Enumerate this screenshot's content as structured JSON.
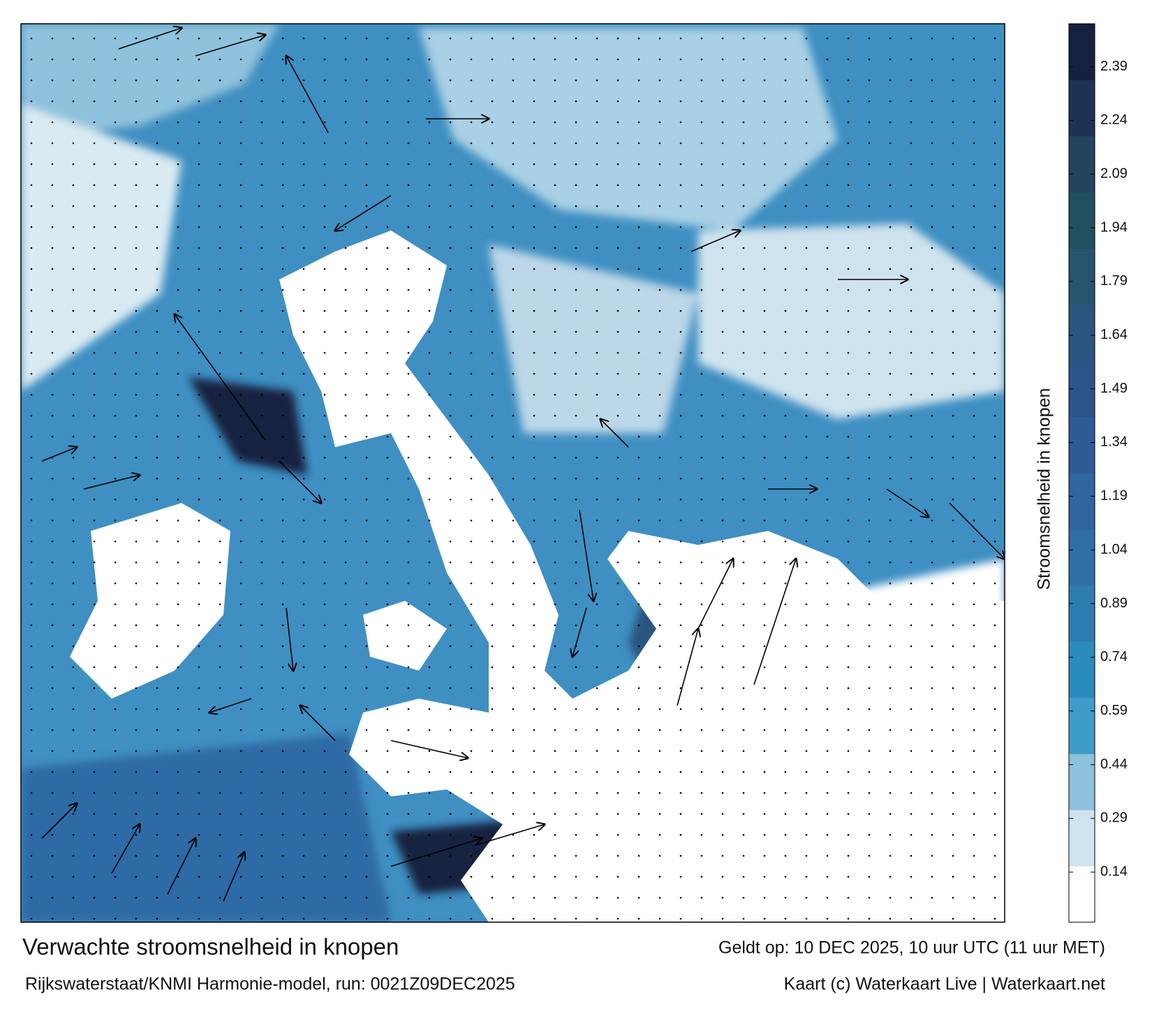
{
  "map": {
    "title": "Verwachte stroomsnelheid in knopen",
    "subtitle": "Rijkswaterstaat/KNMI Harmonie-model, run: 0021Z09DEC2025",
    "valid_time": "Geldt op: 10 DEC 2025, 10 uur UTC (11 uur MET)",
    "credit": "Kaart (c) Waterkaart Live | Waterkaart.net",
    "colorbar": {
      "label": "Stroomsnelheid in knopen",
      "lim": [
        0,
        2.51
      ],
      "ticks": [
        0.14,
        0.29,
        0.44,
        0.59,
        0.74,
        0.89,
        1.04,
        1.19,
        1.34,
        1.49,
        1.64,
        1.79,
        1.94,
        2.09,
        2.24,
        2.39
      ],
      "colors": [
        "#ffffff",
        "#cfe3ee",
        "#8fc2dc",
        "#3f9cc8",
        "#2a8bbd",
        "#2d7cb2",
        "#2f6fa8",
        "#2f65a0",
        "#2d5b95",
        "#2b5589",
        "#2b5580",
        "#27546e",
        "#23505e",
        "#22445f",
        "#1d3356",
        "#16213f"
      ]
    }
  }
}
